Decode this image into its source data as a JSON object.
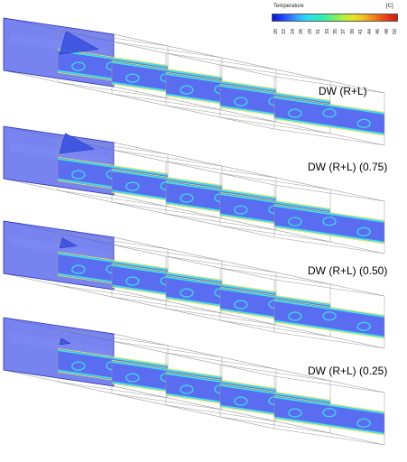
{
  "colorbar": {
    "title": "Temperature",
    "unit": "[C]",
    "ticks": [
      "20",
      "22",
      "24",
      "26",
      "29",
      "31",
      "33",
      "35",
      "37",
      "39",
      "41",
      "44",
      "46",
      "48",
      "50"
    ],
    "colors": [
      "#0a12c8",
      "#1e3cff",
      "#2f78ff",
      "#30b4ff",
      "#2ee0f0",
      "#28e8c8",
      "#3cf0a0",
      "#78f064",
      "#b4f03c",
      "#e6e628",
      "#f0c81e",
      "#f0961e",
      "#f06414",
      "#e63214",
      "#c81e0a"
    ]
  },
  "cases": [
    {
      "label": "DW (R+L)"
    },
    {
      "label": "DW (R+L) (0.75)"
    },
    {
      "label": "DW (R+L) (0.50)"
    },
    {
      "label": "DW (R+L) (0.25)"
    }
  ],
  "colors": {
    "plane_fill": "#5a6cf0",
    "plane_edge": "#2a32b4",
    "stripe_cyan": "#3de6e6",
    "stripe_yellow": "#e8e84a",
    "wireframe": "#9a9a9a",
    "inlet_fill": "#4a5ae8"
  }
}
